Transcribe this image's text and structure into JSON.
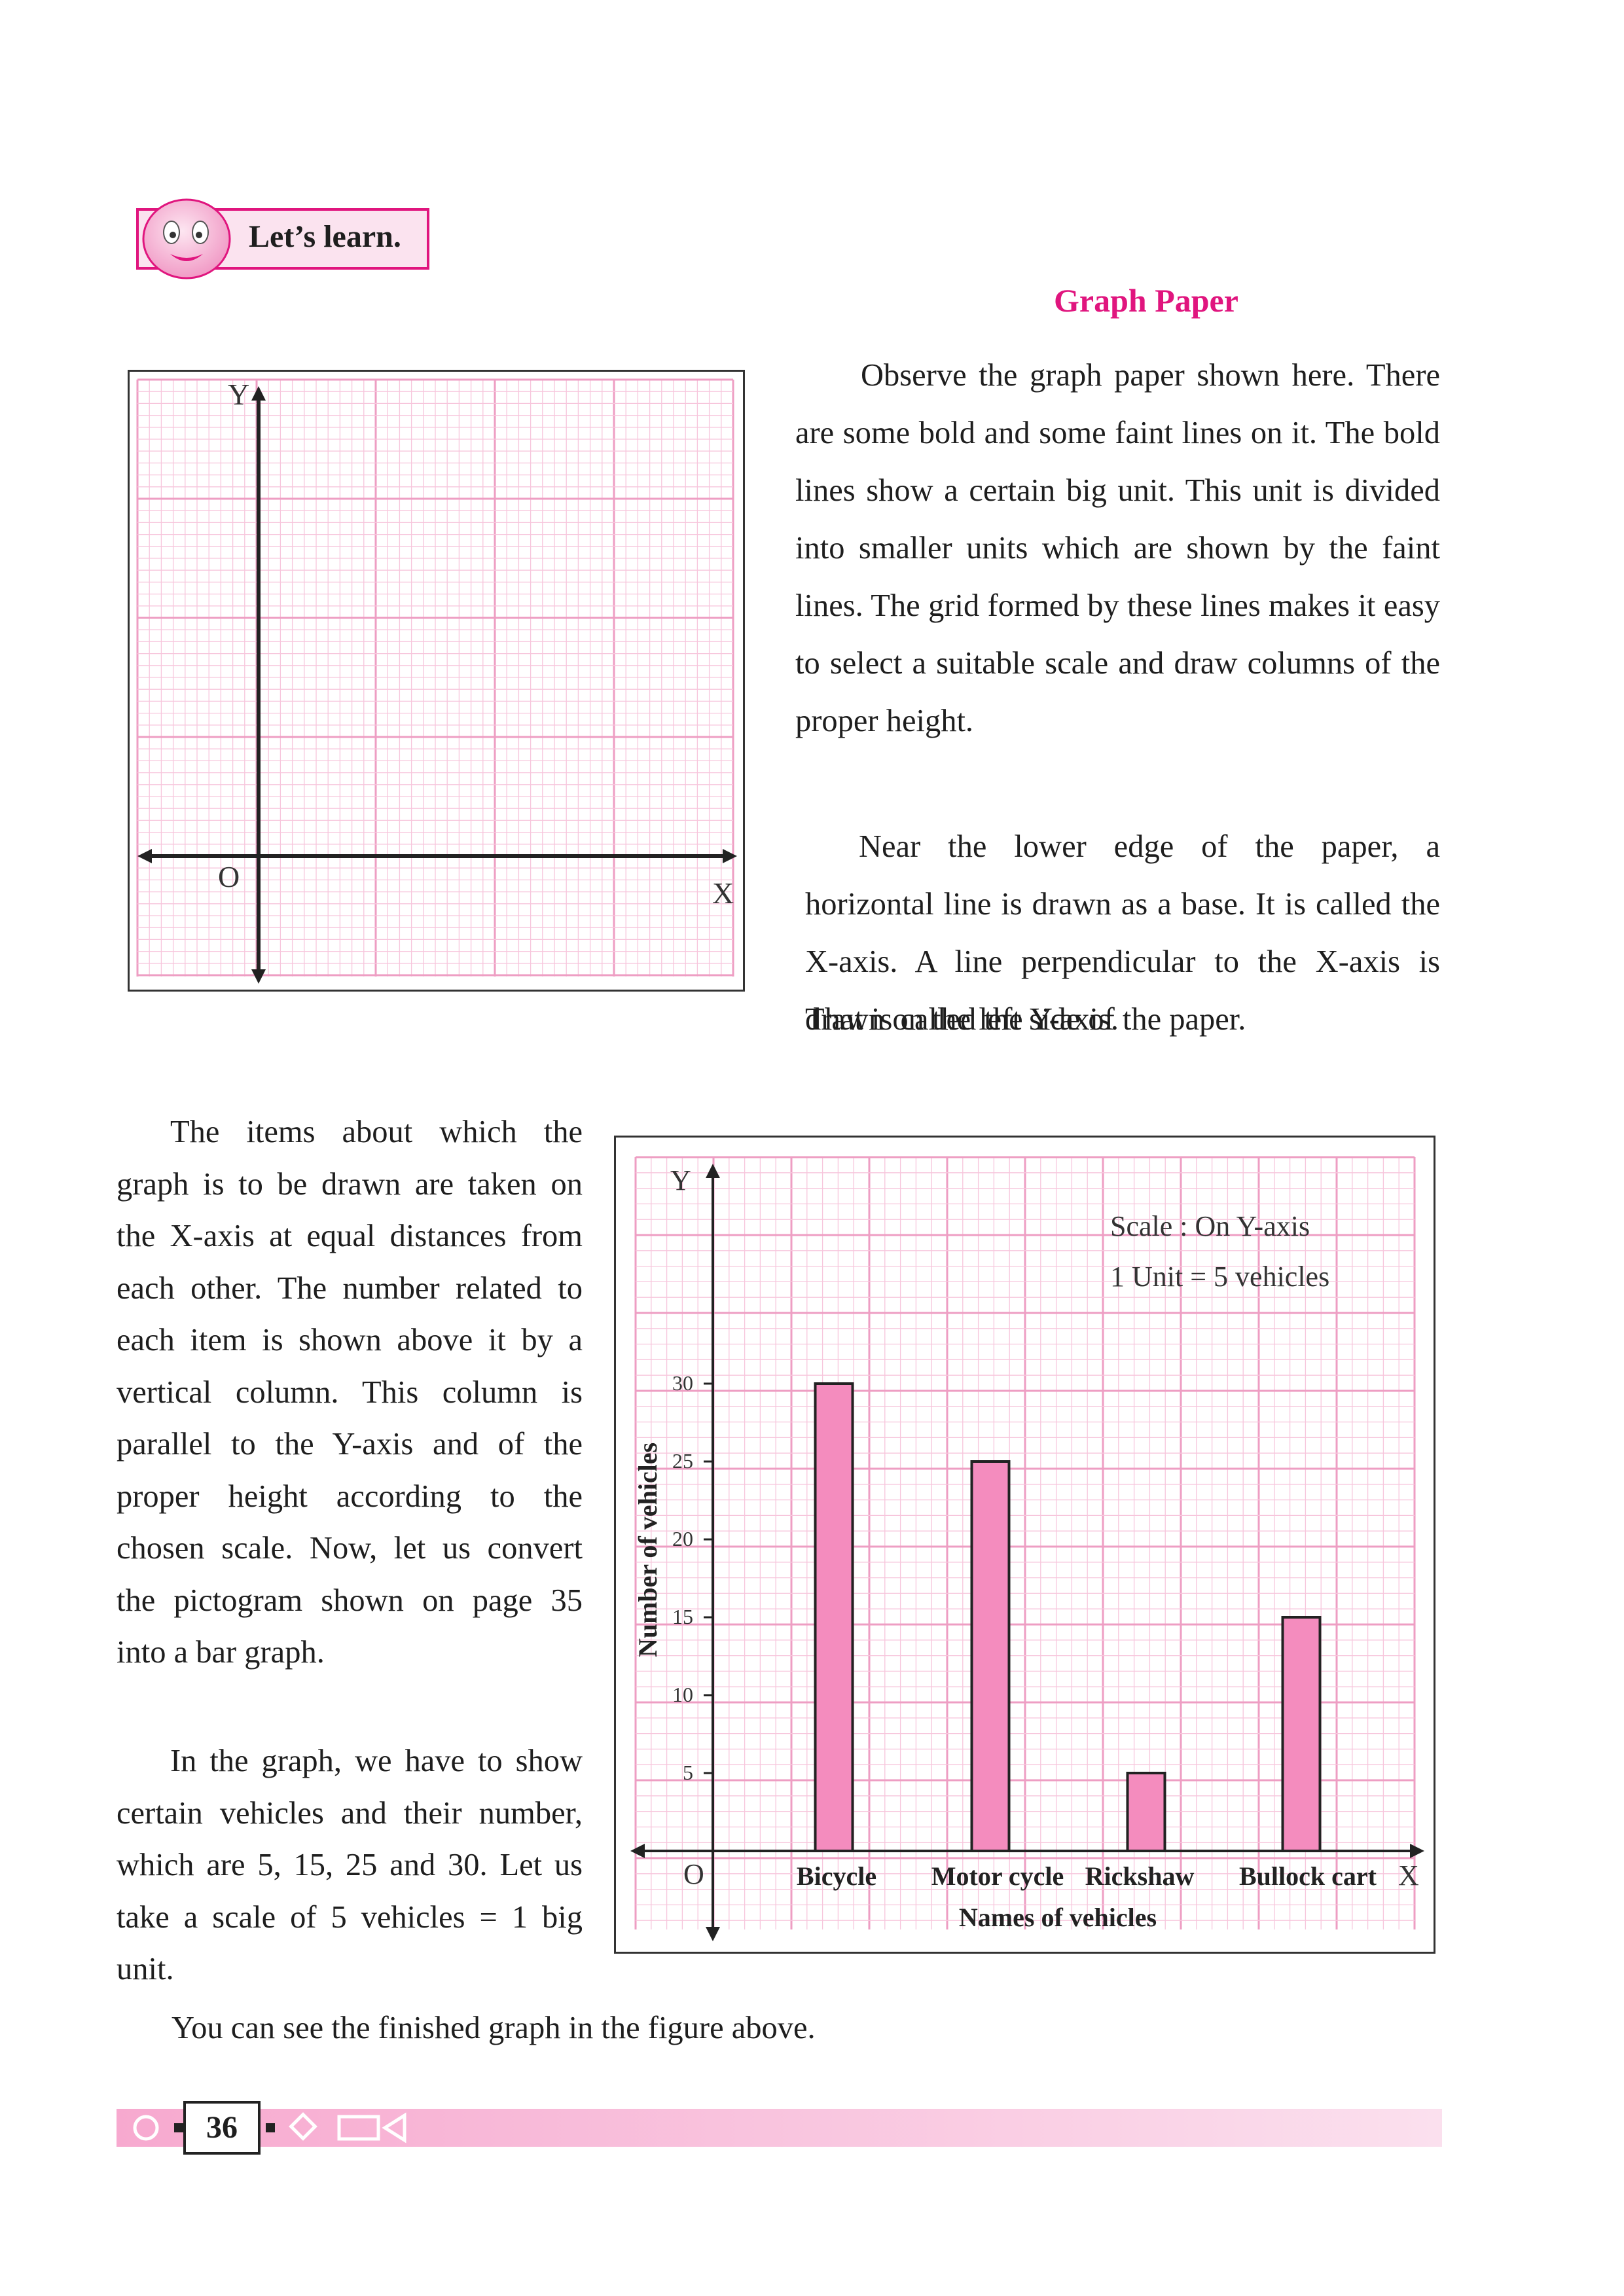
{
  "badge": {
    "label": "Let’s learn."
  },
  "section_title": "Graph Paper",
  "paragraphs": {
    "graph_paper_intro": "Observe the graph paper shown here. There are some bold and some faint lines on it. The bold lines show a certain big unit. This unit is divided into smaller units which are shown by the faint lines. The grid formed by these lines makes it easy to select a suitable scale and draw columns of the proper height.",
    "axes_intro": "Near the lower edge of the paper, a horizontal line is drawn as a base. It is called the X-axis. A line perpendicular to the X-axis is drawn on the left side of the paper.",
    "axes_intro_end": "That is called the Y-axis.",
    "bar_explanation": "The items about which the graph is to be drawn are taken on the X-axis at equal distances from each other. The number related to each item is shown above it by a vertical column. This column is parallel to the Y-axis and of the proper height according to the chosen scale. Now, let us convert the pictogram shown on page 35 into a bar graph.",
    "scale_explanation": "In the graph, we have to show certain vehicles and their number, which are 5, 15, 25 and 30. Let us take a scale of 5 vehicles = 1 big unit.",
    "finished": "You can see the finished graph in the figure above."
  },
  "graph_paper_figure": {
    "y_label": "Y",
    "x_label": "X",
    "origin_label": "O"
  },
  "chart_data": {
    "type": "bar",
    "categories": [
      "Bicycle",
      "Motor cycle",
      "Rickshaw",
      "Bullock cart"
    ],
    "values": [
      30,
      25,
      5,
      15
    ],
    "xlabel": "Names of vehicles",
    "ylabel": "Number of vehicles",
    "y_axis_letter": "Y",
    "x_axis_letter": "X",
    "origin_label": "O",
    "yticks": [
      5,
      10,
      15,
      20,
      25,
      30
    ],
    "ylim": [
      0,
      40
    ],
    "scale_note_line1": "Scale : On Y-axis",
    "scale_note_line2": "1 Unit = 5 vehicles",
    "bar_color": "#f48cbe",
    "grid": true
  },
  "colors": {
    "accent": "#e0157e",
    "grid_fine": "#f7c6dc",
    "grid_bold": "#ee9ec3",
    "bar": "#f48cbe"
  },
  "footer": {
    "page_number": "36"
  }
}
